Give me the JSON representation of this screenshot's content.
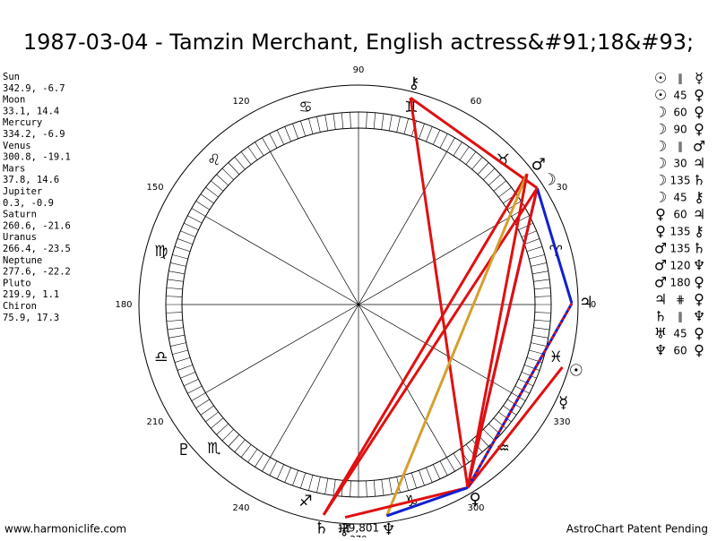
{
  "header": {
    "title": "1987-03-04 - Tamzin Merchant, English actress&#91;18&#93;"
  },
  "planets": [
    {
      "name": "Sun",
      "glyph": "☉",
      "position": "342.9, -6.7"
    },
    {
      "name": "Moon",
      "glyph": "☽",
      "position": "33.1, 14.4"
    },
    {
      "name": "Mercury",
      "glyph": "☿",
      "position": "334.2, -6.9"
    },
    {
      "name": "Venus",
      "glyph": "♀",
      "position": "300.8, -19.1"
    },
    {
      "name": "Mars",
      "glyph": "♂",
      "position": "37.8, 14.6"
    },
    {
      "name": "Jupiter",
      "glyph": "♃",
      "position": "0.3, -0.9"
    },
    {
      "name": "Saturn",
      "glyph": "♄",
      "position": "260.6, -21.6"
    },
    {
      "name": "Uranus",
      "glyph": "♅",
      "position": "266.4, -23.5"
    },
    {
      "name": "Neptune",
      "glyph": "♆",
      "position": "277.6, -22.2"
    },
    {
      "name": "Pluto",
      "glyph": "♇",
      "position": "219.9, 1.1"
    },
    {
      "name": "Chiron",
      "glyph": "⚷",
      "position": "75.9, 17.3"
    }
  ],
  "aspects": [
    {
      "from": "☉",
      "type": "∥",
      "to": "☿"
    },
    {
      "from": "☉",
      "type": "45",
      "to": "♀",
      "color": "#e01010"
    },
    {
      "from": "☽",
      "type": "60",
      "to": "♀",
      "color": "#1020d0"
    },
    {
      "from": "☽",
      "type": "90",
      "to": "♀",
      "color": "#e01010"
    },
    {
      "from": "☽",
      "type": "∥",
      "to": "♂"
    },
    {
      "from": "☽",
      "type": "30",
      "to": "♃",
      "color": "#1020d0"
    },
    {
      "from": "☽",
      "type": "135",
      "to": "♄",
      "color": "#e01010"
    },
    {
      "from": "☽",
      "type": "45",
      "to": "⚷",
      "color": "#e01010"
    },
    {
      "from": "♀",
      "type": "60",
      "to": "♃",
      "color": "#1020d0"
    },
    {
      "from": "♀",
      "type": "135",
      "to": "⚷",
      "color": "#e01010"
    },
    {
      "from": "♂",
      "type": "135",
      "to": "♄",
      "color": "#e01010"
    },
    {
      "from": "♂",
      "type": "120",
      "to": "♆",
      "color": "#d4a030"
    },
    {
      "from": "♂",
      "type": "180",
      "to": "♀",
      "color": "#e01010"
    },
    {
      "from": "♃",
      "type": "⋕",
      "to": "♀",
      "color": "#e01010",
      "line": "dotted"
    },
    {
      "from": "♄",
      "type": "∥",
      "to": "♆"
    },
    {
      "from": "♅",
      "type": "45",
      "to": "♀",
      "color": "#e01010"
    },
    {
      "from": "♆",
      "type": "60",
      "to": "♀",
      "color": "#1020d0"
    }
  ],
  "wheel": {
    "signs": [
      "♈",
      "♉",
      "♊",
      "♋",
      "♌",
      "♍",
      "♎",
      "♏",
      "♐",
      "♑",
      "♒",
      "♓"
    ],
    "degree_labels": [
      0,
      30,
      60,
      90,
      120,
      150,
      180,
      210,
      240,
      270,
      300,
      330
    ],
    "bottom_label": "-29,801"
  },
  "footer": {
    "left": "www.harmoniclife.com",
    "right": "AstroChart Patent Pending"
  }
}
